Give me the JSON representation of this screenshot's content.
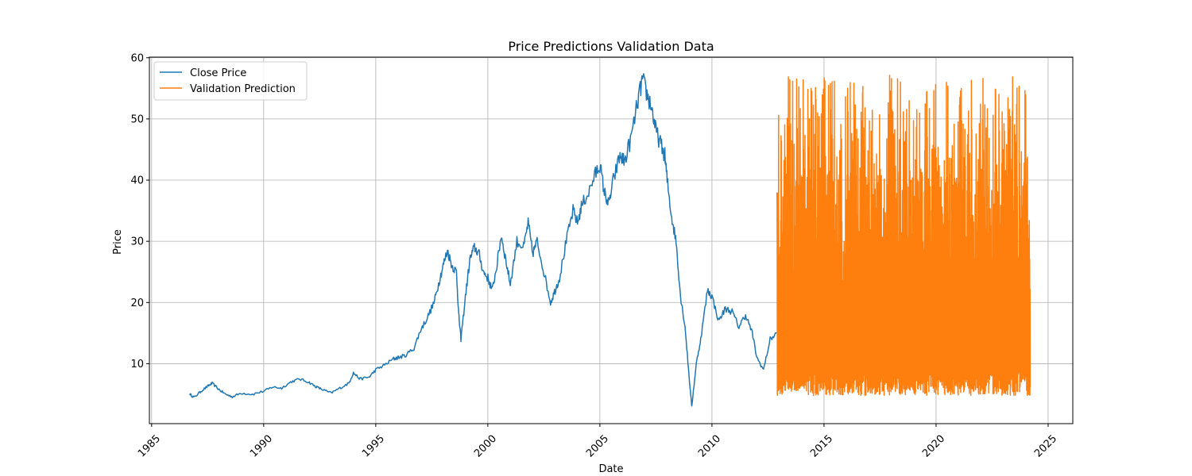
{
  "chart_data": {
    "type": "line",
    "title": "Price Predictions Validation Data",
    "xlabel": "Date",
    "ylabel": "Price",
    "xlim": [
      1984.9,
      2026.1
    ],
    "ylim": [
      0.2,
      60.1
    ],
    "x_ticks": [
      1985,
      1990,
      1995,
      2000,
      2005,
      2010,
      2015,
      2020,
      2025
    ],
    "x_tick_labels": [
      "1985",
      "1990",
      "1995",
      "2000",
      "2005",
      "2010",
      "2015",
      "2020",
      "2025"
    ],
    "y_ticks": [
      10,
      20,
      30,
      40,
      50,
      60
    ],
    "y_tick_labels": [
      "10",
      "20",
      "30",
      "40",
      "50",
      "60"
    ],
    "grid": true,
    "legend": {
      "position": "upper-left",
      "entries": [
        "Close Price",
        "Validation Prediction"
      ]
    },
    "series": [
      {
        "name": "Close Price",
        "color": "#1f77b4",
        "x": [
          1986.7,
          1986.9,
          1987.2,
          1987.5,
          1987.7,
          1988.0,
          1988.3,
          1988.6,
          1989.0,
          1989.5,
          1990.0,
          1990.4,
          1990.8,
          1991.2,
          1991.6,
          1992.0,
          1992.3,
          1992.6,
          1993.0,
          1993.4,
          1993.8,
          1994.0,
          1994.3,
          1994.7,
          1995.0,
          1995.4,
          1995.8,
          1996.0,
          1996.3,
          1996.7,
          1997.0,
          1997.3,
          1997.6,
          1997.8,
          1998.0,
          1998.2,
          1998.4,
          1998.6,
          1998.7,
          1998.8,
          1999.0,
          1999.2,
          1999.4,
          1999.6,
          1999.8,
          2000.0,
          2000.2,
          2000.4,
          2000.6,
          2000.8,
          2001.0,
          2001.3,
          2001.6,
          2001.8,
          2002.0,
          2002.2,
          2002.5,
          2002.8,
          2003.0,
          2003.2,
          2003.5,
          2003.8,
          2004.0,
          2004.2,
          2004.5,
          2004.8,
          2005.0,
          2005.2,
          2005.4,
          2005.6,
          2005.9,
          2006.1,
          2006.4,
          2006.7,
          2006.9,
          2007.1,
          2007.3,
          2007.5,
          2007.7,
          2007.9,
          2008.0,
          2008.2,
          2008.4,
          2008.6,
          2008.8,
          2009.0,
          2009.1,
          2009.3,
          2009.5,
          2009.8,
          2010.0,
          2010.3,
          2010.6,
          2010.9,
          2011.2,
          2011.5,
          2011.8,
          2012.0,
          2012.3,
          2012.6,
          2012.9
        ],
        "y": [
          5.0,
          4.5,
          5.5,
          6.3,
          6.8,
          5.8,
          5.0,
          4.6,
          5.2,
          5.0,
          5.5,
          6.2,
          6.0,
          7.0,
          7.5,
          7.0,
          6.3,
          5.8,
          5.2,
          6.0,
          6.8,
          8.5,
          7.5,
          7.8,
          9.0,
          9.8,
          10.8,
          11.0,
          11.3,
          12.5,
          15.5,
          17.5,
          20.0,
          23.0,
          26.0,
          28.5,
          26.0,
          25.0,
          18.0,
          14.0,
          21.0,
          27.0,
          29.0,
          28.0,
          25.0,
          24.0,
          22.0,
          26.0,
          31.0,
          27.0,
          23.0,
          30.0,
          29.0,
          33.0,
          28.0,
          30.0,
          25.0,
          20.0,
          22.0,
          24.0,
          30.0,
          35.0,
          33.0,
          36.0,
          38.0,
          41.0,
          42.5,
          38.0,
          36.0,
          40.0,
          44.0,
          43.0,
          47.0,
          53.0,
          56.5,
          54.0,
          52.0,
          48.0,
          46.0,
          44.0,
          40.0,
          34.0,
          30.0,
          21.0,
          16.0,
          7.0,
          3.0,
          10.0,
          14.0,
          22.0,
          21.0,
          17.0,
          19.0,
          18.5,
          16.0,
          18.0,
          15.0,
          11.0,
          9.0,
          14.0,
          15.0
        ]
      },
      {
        "name": "Validation Prediction",
        "color": "#ff7f0e",
        "x_range": [
          2012.9,
          2024.2
        ],
        "y_min": 3.3,
        "y_max": 57.2
      }
    ]
  }
}
